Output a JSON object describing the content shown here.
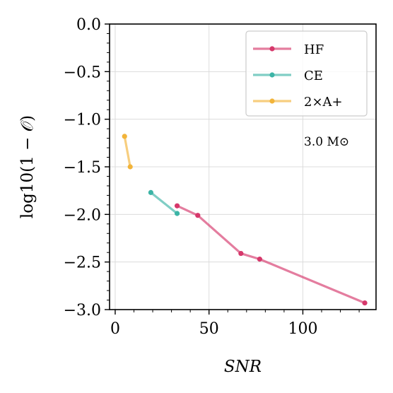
{
  "chart_data": {
    "type": "line",
    "xlabel": "SNR",
    "ylabel": "log10(1 − 𝒪)",
    "xlim": [
      -3,
      139
    ],
    "ylim": [
      -3.0,
      0.0
    ],
    "xticks": [
      0,
      50,
      100
    ],
    "xtick_labels": [
      "0",
      "50",
      "100"
    ],
    "yticks": [
      0.0,
      -0.5,
      -1.0,
      -1.5,
      -2.0,
      -2.5,
      -3.0
    ],
    "ytick_labels": [
      "0.0",
      "−0.5",
      "−1.0",
      "−1.5",
      "−2.0",
      "−2.5",
      "−3.0"
    ],
    "grid": true,
    "legend_position": "top-right",
    "annotation": "3.0 M⊙",
    "series": [
      {
        "name": "HF",
        "color": "#d6386b",
        "x": [
          33,
          44,
          67,
          77,
          133
        ],
        "y": [
          -1.91,
          -2.01,
          -2.41,
          -2.47,
          -2.93
        ]
      },
      {
        "name": "CE",
        "color": "#3cb4a6",
        "x": [
          19,
          33
        ],
        "y": [
          -1.77,
          -1.99
        ]
      },
      {
        "name": "2×A+",
        "color": "#f2b43a",
        "x": [
          5,
          8
        ],
        "y": [
          -1.18,
          -1.5
        ]
      }
    ]
  }
}
